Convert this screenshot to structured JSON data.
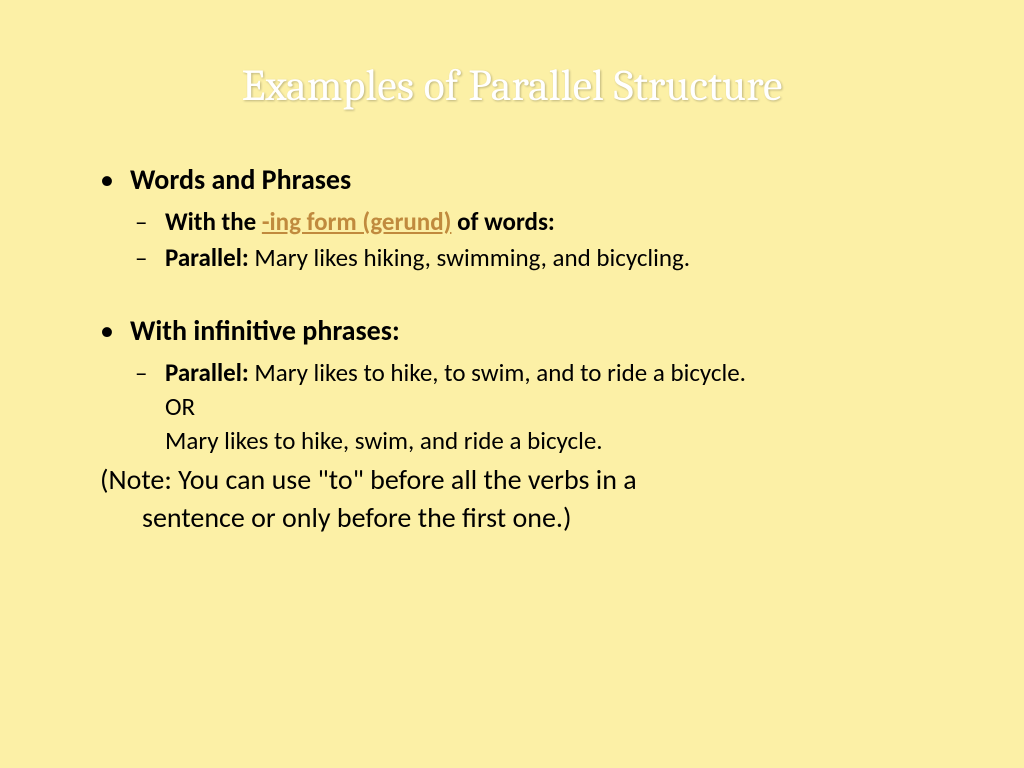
{
  "slide": {
    "background_color": "#fcf0a6",
    "title": {
      "text": "Examples of Parallel Structure",
      "color": "#ffffff",
      "font_family": "Cambria",
      "font_size_pt": 33
    },
    "body_font": {
      "family": "Calibri",
      "size_pt": 21,
      "color": "#000000"
    },
    "link_color": "#c08a3e",
    "bullets": [
      {
        "level": 1,
        "heading": "Words and Phrases",
        "sub": [
          {
            "prefix": "With the ",
            "link_text": "-ing form (gerund)",
            "suffix": " of words:"
          },
          {
            "label": "Parallel:",
            "text": " Mary likes hiking, swimming, and bicycling."
          }
        ]
      },
      {
        "level": 1,
        "heading": "With infinitive phrases:",
        "sub": [
          {
            "label": "Parallel:",
            "text": " Mary likes to hike, to swim, and to ride a bicycle.",
            "extra_lines": [
              "OR",
              "Mary likes to hike, swim, and ride a bicycle."
            ]
          }
        ]
      }
    ],
    "note_line1": "(Note: You can use \"to\" before all the verbs in a",
    "note_line2": "sentence or only before the first one.)"
  }
}
